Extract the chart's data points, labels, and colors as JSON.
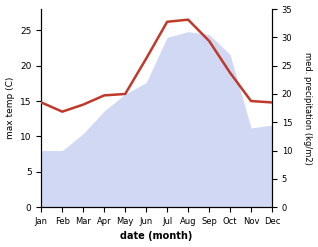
{
  "months": [
    "Jan",
    "Feb",
    "Mar",
    "Apr",
    "May",
    "Jun",
    "Jul",
    "Aug",
    "Sep",
    "Oct",
    "Nov",
    "Dec"
  ],
  "temperature": [
    14.8,
    13.5,
    14.5,
    15.8,
    16.0,
    21.0,
    26.2,
    26.5,
    23.5,
    19.0,
    15.0,
    14.8
  ],
  "precipitation": [
    10.0,
    10.0,
    13.0,
    17.0,
    20.0,
    22.0,
    30.0,
    31.0,
    30.5,
    27.0,
    14.0,
    14.5
  ],
  "temp_color": "#c0392b",
  "precip_color": "#b8c4ee",
  "left_ylim": [
    0,
    28
  ],
  "right_ylim": [
    0,
    35
  ],
  "left_yticks": [
    0,
    5,
    10,
    15,
    20,
    25
  ],
  "right_yticks": [
    0,
    5,
    10,
    15,
    20,
    25,
    30,
    35
  ],
  "ylabel_left": "max temp (C)",
  "ylabel_right": "med. precipitation (kg/m2)",
  "xlabel": "date (month)",
  "background_color": "#ffffff",
  "temp_linewidth": 1.8
}
